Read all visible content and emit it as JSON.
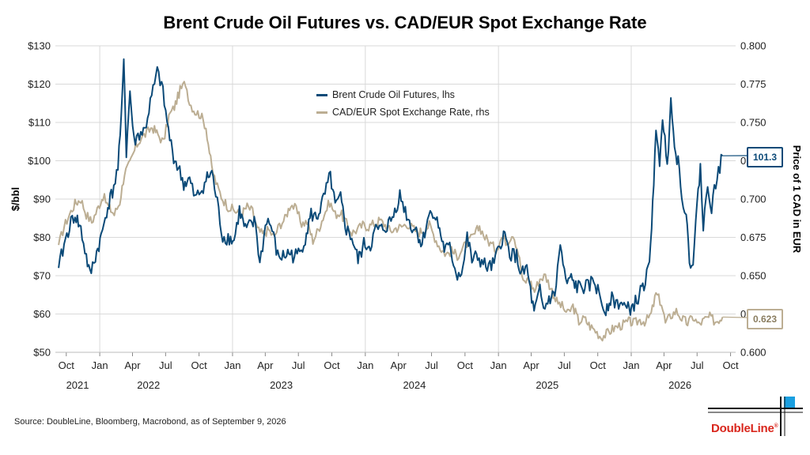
{
  "title": "Brent Crude Oil Futures vs. CAD/EUR Spot Exchange Rate",
  "source": "Source: DoubleLine, Bloomberg, Macrobond, as of September 9, 2026",
  "logo_text": "DoubleLine",
  "logo_reg": "®",
  "colors": {
    "brent": "#0b4a78",
    "cad": "#bcae93",
    "grid": "#d9d9d9",
    "text": "#222222"
  },
  "chart_data": {
    "type": "line",
    "title": "Brent Crude Oil Futures vs. CAD/EUR Spot Exchange Rate",
    "ylabel": "$/bbl",
    "y2label": "Price of 1 CAD in EUR",
    "ylim": [
      50,
      130
    ],
    "y2lim": [
      0.6,
      0.8
    ],
    "yticks": [
      "$50",
      "$60",
      "$70",
      "$80",
      "$90",
      "$100",
      "$110",
      "$120",
      "$130"
    ],
    "y2ticks": [
      "0.600",
      "0.625",
      "0.650",
      "0.675",
      "0.700",
      "0.725",
      "0.750",
      "0.775",
      "0.800"
    ],
    "xticks": [
      "Oct",
      "Jan",
      "Apr",
      "Jul",
      "Oct",
      "Jan",
      "Apr",
      "Jul",
      "Oct",
      "Jan",
      "Apr",
      "Jul",
      "Oct",
      "Jan",
      "Apr",
      "Jul",
      "Oct",
      "Jan",
      "Apr",
      "Jul",
      "Oct"
    ],
    "years": [
      "2021",
      "2022",
      "2023",
      "2024",
      "2025",
      "2026"
    ],
    "legend_position": "top-center",
    "grid": true,
    "series": [
      {
        "name": "Brent Crude Oil Futures, lhs",
        "axis": "left",
        "last_label": "101.3",
        "points": [
          [
            "2021-09-10",
            72
          ],
          [
            "2021-09-25",
            78
          ],
          [
            "2021-10-10",
            83
          ],
          [
            "2021-10-25",
            86
          ],
          [
            "2021-11-10",
            82
          ],
          [
            "2021-11-25",
            75
          ],
          [
            "2021-12-05",
            70
          ],
          [
            "2021-12-20",
            75
          ],
          [
            "2022-01-05",
            80
          ],
          [
            "2022-01-20",
            87
          ],
          [
            "2022-02-05",
            92
          ],
          [
            "2022-02-20",
            98
          ],
          [
            "2022-03-01",
            110
          ],
          [
            "2022-03-08",
            128
          ],
          [
            "2022-03-15",
            102
          ],
          [
            "2022-03-25",
            118
          ],
          [
            "2022-04-05",
            105
          ],
          [
            "2022-04-20",
            107
          ],
          [
            "2022-05-05",
            108
          ],
          [
            "2022-05-20",
            115
          ],
          [
            "2022-06-08",
            123
          ],
          [
            "2022-06-20",
            120
          ],
          [
            "2022-07-05",
            110
          ],
          [
            "2022-07-20",
            102
          ],
          [
            "2022-08-05",
            98
          ],
          [
            "2022-08-20",
            94
          ],
          [
            "2022-09-05",
            95
          ],
          [
            "2022-09-20",
            90
          ],
          [
            "2022-10-05",
            92
          ],
          [
            "2022-10-20",
            95
          ],
          [
            "2022-11-05",
            97
          ],
          [
            "2022-11-20",
            89
          ],
          [
            "2022-12-05",
            80
          ],
          [
            "2022-12-20",
            80
          ],
          [
            "2023-01-05",
            79
          ],
          [
            "2023-01-20",
            87
          ],
          [
            "2023-02-05",
            82
          ],
          [
            "2023-02-20",
            83
          ],
          [
            "2023-03-05",
            84
          ],
          [
            "2023-03-17",
            73
          ],
          [
            "2023-04-05",
            85
          ],
          [
            "2023-04-20",
            82
          ],
          [
            "2023-05-05",
            75
          ],
          [
            "2023-05-20",
            75
          ],
          [
            "2023-06-05",
            76
          ],
          [
            "2023-06-20",
            75
          ],
          [
            "2023-07-05",
            76
          ],
          [
            "2023-07-20",
            80
          ],
          [
            "2023-08-05",
            86
          ],
          [
            "2023-08-20",
            85
          ],
          [
            "2023-09-05",
            89
          ],
          [
            "2023-09-27",
            96
          ],
          [
            "2023-10-10",
            88
          ],
          [
            "2023-10-25",
            90
          ],
          [
            "2023-11-10",
            82
          ],
          [
            "2023-11-25",
            80
          ],
          [
            "2023-12-12",
            74
          ],
          [
            "2023-12-28",
            78
          ],
          [
            "2024-01-15",
            78
          ],
          [
            "2024-01-30",
            82
          ],
          [
            "2024-02-15",
            82
          ],
          [
            "2024-03-01",
            83
          ],
          [
            "2024-03-15",
            85
          ],
          [
            "2024-04-05",
            91
          ],
          [
            "2024-04-20",
            87
          ],
          [
            "2024-05-05",
            83
          ],
          [
            "2024-05-20",
            82
          ],
          [
            "2024-06-05",
            78
          ],
          [
            "2024-06-20",
            85
          ],
          [
            "2024-07-05",
            87
          ],
          [
            "2024-07-20",
            83
          ],
          [
            "2024-08-05",
            77
          ],
          [
            "2024-08-20",
            77
          ],
          [
            "2024-09-10",
            70
          ],
          [
            "2024-09-25",
            72
          ],
          [
            "2024-10-07",
            80
          ],
          [
            "2024-10-20",
            74
          ],
          [
            "2024-11-05",
            75
          ],
          [
            "2024-11-20",
            73
          ],
          [
            "2024-12-05",
            72
          ],
          [
            "2024-12-20",
            73
          ],
          [
            "2025-01-15",
            81
          ],
          [
            "2025-02-01",
            76
          ],
          [
            "2025-02-20",
            75
          ],
          [
            "2025-03-05",
            70
          ],
          [
            "2025-03-20",
            72
          ],
          [
            "2025-04-09",
            60
          ],
          [
            "2025-04-25",
            66
          ],
          [
            "2025-05-05",
            61
          ],
          [
            "2025-05-20",
            64
          ],
          [
            "2025-06-05",
            65
          ],
          [
            "2025-06-20",
            78
          ],
          [
            "2025-07-05",
            68
          ],
          [
            "2025-07-20",
            69
          ],
          [
            "2025-08-05",
            67
          ],
          [
            "2025-08-20",
            67
          ],
          [
            "2025-09-05",
            67
          ],
          [
            "2025-09-20",
            69
          ],
          [
            "2025-10-05",
            65
          ],
          [
            "2025-10-20",
            61
          ],
          [
            "2025-11-05",
            64
          ],
          [
            "2025-11-20",
            63
          ],
          [
            "2025-12-05",
            63
          ],
          [
            "2025-12-20",
            61
          ],
          [
            "2026-01-05",
            62
          ],
          [
            "2026-01-20",
            64
          ],
          [
            "2026-02-05",
            68
          ],
          [
            "2026-02-20",
            72
          ],
          [
            "2026-03-01",
            90
          ],
          [
            "2026-03-10",
            106
          ],
          [
            "2026-03-20",
            100
          ],
          [
            "2026-03-28",
            112
          ],
          [
            "2026-04-10",
            98
          ],
          [
            "2026-04-20",
            118
          ],
          [
            "2026-04-30",
            103
          ],
          [
            "2026-05-10",
            100
          ],
          [
            "2026-05-20",
            92
          ],
          [
            "2026-06-01",
            85
          ],
          [
            "2026-06-10",
            74
          ],
          [
            "2026-06-20",
            74
          ],
          [
            "2026-07-01",
            88
          ],
          [
            "2026-07-10",
            99
          ],
          [
            "2026-07-18",
            82
          ],
          [
            "2026-07-30",
            94
          ],
          [
            "2026-08-10",
            88
          ],
          [
            "2026-08-25",
            96
          ],
          [
            "2026-09-09",
            101.3
          ]
        ]
      },
      {
        "name": "CAD/EUR Spot Exchange Rate, rhs",
        "axis": "right",
        "last_label": "0.623",
        "points": [
          [
            "2021-09-10",
            0.67
          ],
          [
            "2021-09-25",
            0.682
          ],
          [
            "2021-10-10",
            0.69
          ],
          [
            "2021-10-25",
            0.697
          ],
          [
            "2021-11-10",
            0.7
          ],
          [
            "2021-11-25",
            0.69
          ],
          [
            "2021-12-10",
            0.685
          ],
          [
            "2021-12-25",
            0.693
          ],
          [
            "2022-01-10",
            0.702
          ],
          [
            "2022-01-25",
            0.695
          ],
          [
            "2022-02-10",
            0.69
          ],
          [
            "2022-02-25",
            0.698
          ],
          [
            "2022-03-10",
            0.717
          ],
          [
            "2022-03-25",
            0.723
          ],
          [
            "2022-04-10",
            0.734
          ],
          [
            "2022-04-25",
            0.74
          ],
          [
            "2022-05-10",
            0.743
          ],
          [
            "2022-05-25",
            0.747
          ],
          [
            "2022-06-10",
            0.742
          ],
          [
            "2022-06-25",
            0.737
          ],
          [
            "2022-07-10",
            0.754
          ],
          [
            "2022-07-25",
            0.76
          ],
          [
            "2022-08-10",
            0.771
          ],
          [
            "2022-08-25",
            0.776
          ],
          [
            "2022-09-05",
            0.763
          ],
          [
            "2022-09-20",
            0.757
          ],
          [
            "2022-10-05",
            0.755
          ],
          [
            "2022-10-20",
            0.747
          ],
          [
            "2022-11-05",
            0.72
          ],
          [
            "2022-11-20",
            0.708
          ],
          [
            "2022-12-05",
            0.7
          ],
          [
            "2022-12-20",
            0.695
          ],
          [
            "2023-01-10",
            0.692
          ],
          [
            "2023-01-25",
            0.69
          ],
          [
            "2023-02-10",
            0.695
          ],
          [
            "2023-02-25",
            0.692
          ],
          [
            "2023-03-10",
            0.68
          ],
          [
            "2023-03-25",
            0.677
          ],
          [
            "2023-04-10",
            0.68
          ],
          [
            "2023-04-25",
            0.675
          ],
          [
            "2023-05-10",
            0.683
          ],
          [
            "2023-05-25",
            0.687
          ],
          [
            "2023-06-10",
            0.697
          ],
          [
            "2023-06-25",
            0.693
          ],
          [
            "2023-07-10",
            0.684
          ],
          [
            "2023-07-25",
            0.685
          ],
          [
            "2023-08-10",
            0.673
          ],
          [
            "2023-08-25",
            0.68
          ],
          [
            "2023-09-10",
            0.69
          ],
          [
            "2023-09-25",
            0.698
          ],
          [
            "2023-10-10",
            0.69
          ],
          [
            "2023-10-25",
            0.691
          ],
          [
            "2023-11-10",
            0.684
          ],
          [
            "2023-11-25",
            0.678
          ],
          [
            "2023-12-10",
            0.68
          ],
          [
            "2023-12-25",
            0.683
          ],
          [
            "2024-01-10",
            0.682
          ],
          [
            "2024-01-25",
            0.684
          ],
          [
            "2024-02-10",
            0.686
          ],
          [
            "2024-02-25",
            0.683
          ],
          [
            "2024-03-10",
            0.679
          ],
          [
            "2024-03-25",
            0.681
          ],
          [
            "2024-04-10",
            0.682
          ],
          [
            "2024-04-25",
            0.684
          ],
          [
            "2024-05-10",
            0.681
          ],
          [
            "2024-05-25",
            0.678
          ],
          [
            "2024-06-10",
            0.68
          ],
          [
            "2024-06-25",
            0.683
          ],
          [
            "2024-07-10",
            0.675
          ],
          [
            "2024-07-25",
            0.668
          ],
          [
            "2024-08-10",
            0.664
          ],
          [
            "2024-08-25",
            0.666
          ],
          [
            "2024-09-10",
            0.663
          ],
          [
            "2024-09-25",
            0.668
          ],
          [
            "2024-10-10",
            0.672
          ],
          [
            "2024-10-25",
            0.676
          ],
          [
            "2024-11-10",
            0.682
          ],
          [
            "2024-11-25",
            0.675
          ],
          [
            "2024-12-10",
            0.671
          ],
          [
            "2024-12-25",
            0.667
          ],
          [
            "2025-01-10",
            0.675
          ],
          [
            "2025-01-25",
            0.672
          ],
          [
            "2025-02-10",
            0.678
          ],
          [
            "2025-02-25",
            0.665
          ],
          [
            "2025-03-10",
            0.645
          ],
          [
            "2025-03-25",
            0.648
          ],
          [
            "2025-04-10",
            0.64
          ],
          [
            "2025-04-25",
            0.648
          ],
          [
            "2025-05-10",
            0.65
          ],
          [
            "2025-05-25",
            0.642
          ],
          [
            "2025-06-10",
            0.633
          ],
          [
            "2025-06-25",
            0.63
          ],
          [
            "2025-07-10",
            0.625
          ],
          [
            "2025-07-25",
            0.63
          ],
          [
            "2025-08-10",
            0.62
          ],
          [
            "2025-08-25",
            0.622
          ],
          [
            "2025-09-10",
            0.617
          ],
          [
            "2025-09-25",
            0.614
          ],
          [
            "2025-10-10",
            0.61
          ],
          [
            "2025-10-25",
            0.612
          ],
          [
            "2025-11-10",
            0.615
          ],
          [
            "2025-11-25",
            0.617
          ],
          [
            "2025-12-10",
            0.618
          ],
          [
            "2025-12-25",
            0.62
          ],
          [
            "2026-01-10",
            0.619
          ],
          [
            "2026-01-25",
            0.621
          ],
          [
            "2026-02-10",
            0.62
          ],
          [
            "2026-02-25",
            0.625
          ],
          [
            "2026-03-10",
            0.638
          ],
          [
            "2026-03-25",
            0.632
          ],
          [
            "2026-04-05",
            0.619
          ],
          [
            "2026-04-20",
            0.624
          ],
          [
            "2026-05-05",
            0.627
          ],
          [
            "2026-05-20",
            0.622
          ],
          [
            "2026-06-05",
            0.619
          ],
          [
            "2026-06-20",
            0.623
          ],
          [
            "2026-07-05",
            0.618
          ],
          [
            "2026-07-20",
            0.621
          ],
          [
            "2026-08-05",
            0.623
          ],
          [
            "2026-08-20",
            0.62
          ],
          [
            "2026-09-09",
            0.623
          ]
        ]
      }
    ]
  }
}
